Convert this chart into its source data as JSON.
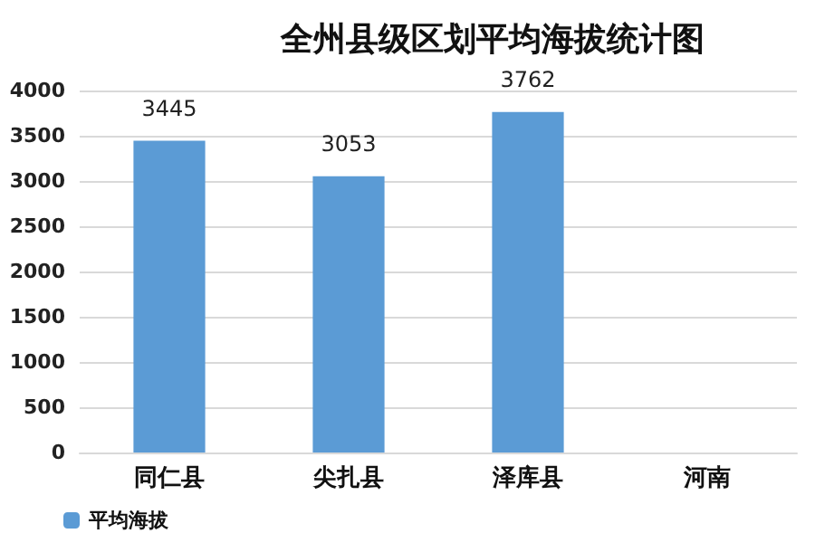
{
  "chart_data": {
    "type": "bar",
    "title": "全州县级区划平均海拔统计图",
    "categories": [
      "同仁县",
      "尖扎县",
      "泽库县",
      "河南"
    ],
    "series": [
      {
        "name": "平均海拔",
        "color": "#5b9bd5",
        "values": [
          3445,
          3053,
          3762,
          null
        ]
      }
    ],
    "ylim": [
      0,
      4000
    ],
    "yticks": [
      0,
      500,
      1000,
      1500,
      2000,
      2500,
      3000,
      3500,
      4000
    ],
    "grid": "y",
    "legend": "bottom left",
    "data_labels": true
  }
}
